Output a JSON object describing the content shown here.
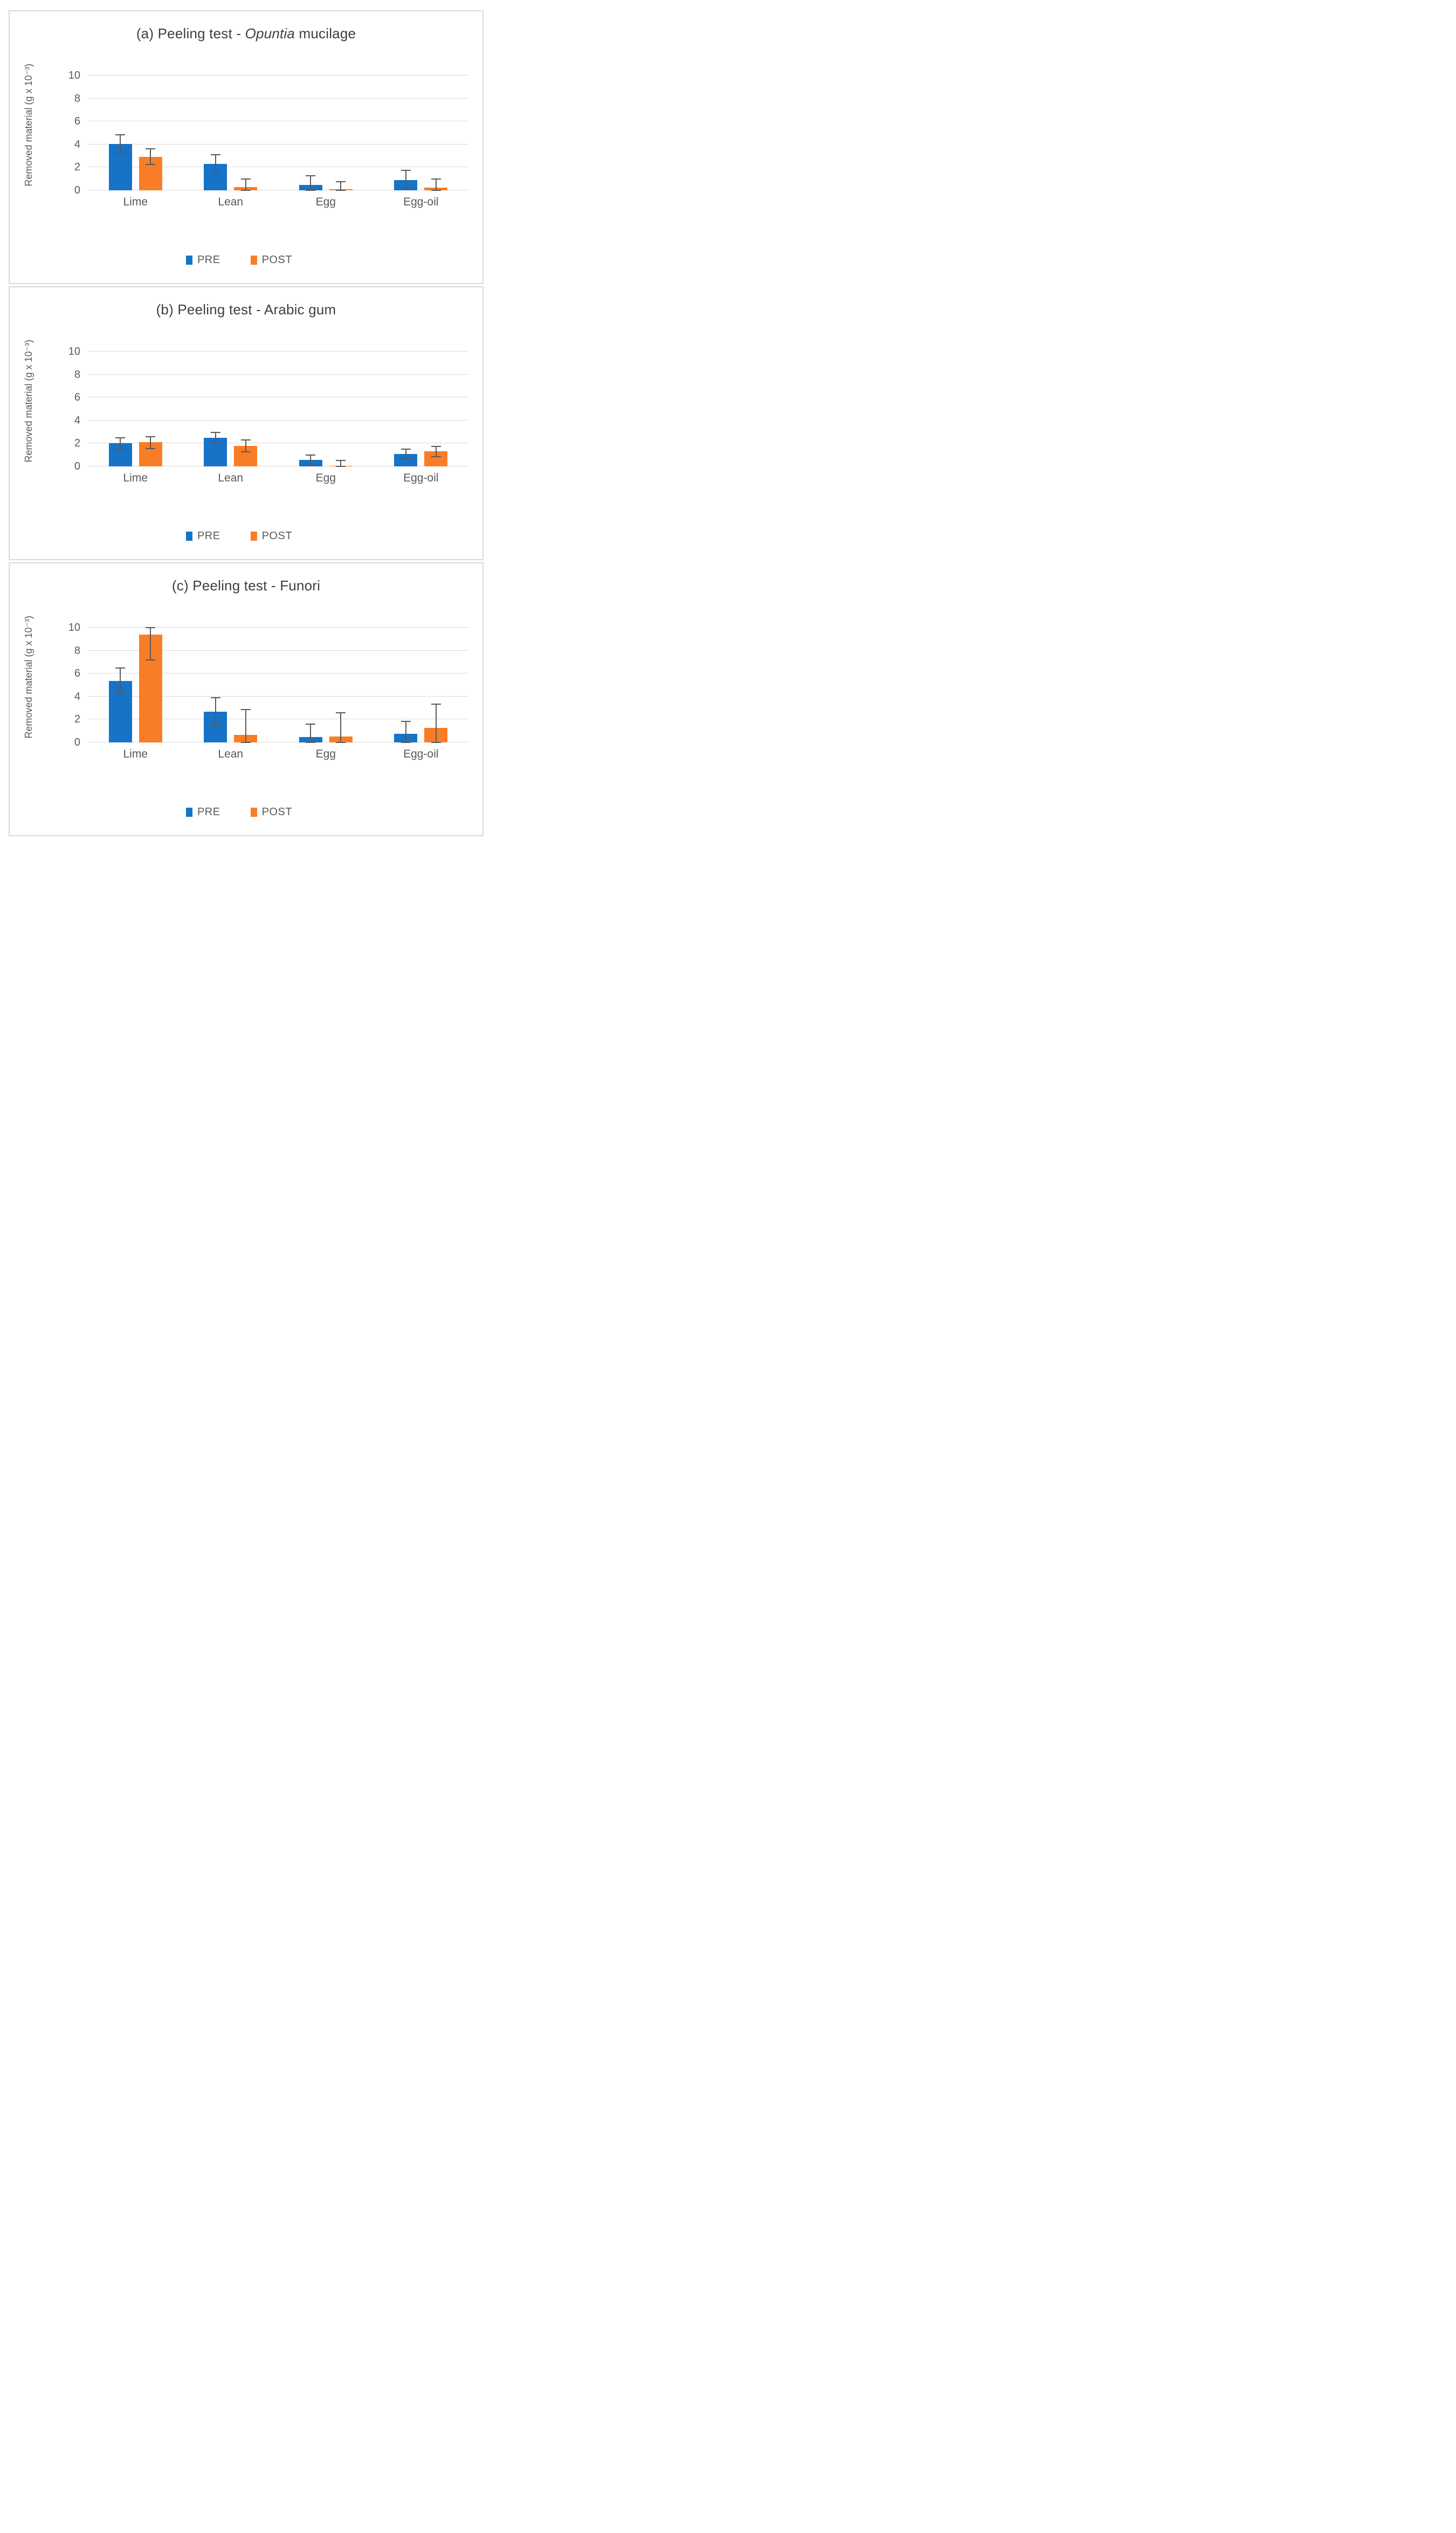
{
  "figure": {
    "y_axis_label": "Removed material (g x 10⁻³)",
    "legend": [
      {
        "label": "PRE",
        "color": "#1673C8"
      },
      {
        "label": "POST",
        "color": "#F97D26"
      }
    ],
    "colors": {
      "pre_bar": "#1673C8",
      "post_bar": "#F97D26",
      "gridline": "#d9d9d9",
      "panel_border": "#d9d9d9",
      "error_bar": "#595959",
      "text": "#595959",
      "title_text": "#3f3f3f"
    }
  },
  "chart_data": [
    {
      "id": "a",
      "type": "bar",
      "title_plain": "(a) Peeling test - Opuntia mucilage",
      "title_parts": [
        {
          "text": "(a) Peeling test - ",
          "italic": false
        },
        {
          "text": "Opuntia",
          "italic": true
        },
        {
          "text": " mucilage",
          "italic": false
        }
      ],
      "categories": [
        "Lime",
        "Lean",
        "Egg",
        "Egg-oil"
      ],
      "ylabel": "Removed material (g x 10⁻³)",
      "ylim": [
        0,
        10
      ],
      "yticks": [
        0,
        2,
        4,
        6,
        8,
        10
      ],
      "grid": true,
      "legend_position": "bottom",
      "series": [
        {
          "name": "PRE",
          "color": "#1673C8",
          "values": [
            4.05,
            2.3,
            0.45,
            0.9
          ],
          "err_low": [
            3.2,
            1.45,
            0.02,
            0.1
          ],
          "err_high": [
            4.85,
            3.1,
            1.25,
            1.75
          ]
        },
        {
          "name": "POST",
          "color": "#F97D26",
          "values": [
            2.9,
            0.3,
            0.08,
            0.25
          ],
          "err_low": [
            2.25,
            0.02,
            0.02,
            0.02
          ],
          "err_high": [
            3.6,
            1.0,
            0.75,
            1.0
          ]
        }
      ]
    },
    {
      "id": "b",
      "type": "bar",
      "title_plain": "(b) Peeling test - Arabic gum",
      "title_parts": [
        {
          "text": "(b) Peeling test - Arabic gum",
          "italic": false
        }
      ],
      "categories": [
        "Lime",
        "Lean",
        "Egg",
        "Egg-oil"
      ],
      "ylabel": "Removed material (g x 10⁻³)",
      "ylim": [
        0,
        10
      ],
      "yticks": [
        0,
        2,
        4,
        6,
        8,
        10
      ],
      "grid": true,
      "legend_position": "bottom",
      "series": [
        {
          "name": "PRE",
          "color": "#1673C8",
          "values": [
            2.0,
            2.5,
            0.55,
            1.1
          ],
          "err_low": [
            1.5,
            2.1,
            0.05,
            0.65
          ],
          "err_high": [
            2.5,
            2.95,
            1.0,
            1.5
          ]
        },
        {
          "name": "POST",
          "color": "#F97D26",
          "values": [
            2.1,
            1.8,
            0.07,
            1.3
          ],
          "err_low": [
            1.55,
            1.25,
            0.02,
            0.85
          ],
          "err_high": [
            2.6,
            2.3,
            0.5,
            1.75
          ]
        }
      ]
    },
    {
      "id": "c",
      "type": "bar",
      "title_plain": "(c) Peeling test - Funori",
      "title_parts": [
        {
          "text": "(c) Peeling test - Funori",
          "italic": false
        }
      ],
      "categories": [
        "Lime",
        "Lean",
        "Egg",
        "Egg-oil"
      ],
      "ylabel": "Removed material (g x 10⁻³)",
      "ylim": [
        0,
        10
      ],
      "yticks": [
        0,
        2,
        4,
        6,
        8,
        10
      ],
      "grid": true,
      "legend_position": "bottom",
      "series": [
        {
          "name": "PRE",
          "color": "#1673C8",
          "values": [
            5.35,
            2.7,
            0.45,
            0.75
          ],
          "err_low": [
            4.3,
            1.55,
            0.02,
            0.02
          ],
          "err_high": [
            6.5,
            3.9,
            1.6,
            1.85
          ]
        },
        {
          "name": "POST",
          "color": "#F97D26",
          "values": [
            9.4,
            0.65,
            0.5,
            1.25
          ],
          "err_low": [
            7.2,
            0.02,
            0.02,
            0.02
          ],
          "err_high": [
            10.0,
            2.85,
            2.6,
            3.35
          ]
        }
      ]
    }
  ]
}
